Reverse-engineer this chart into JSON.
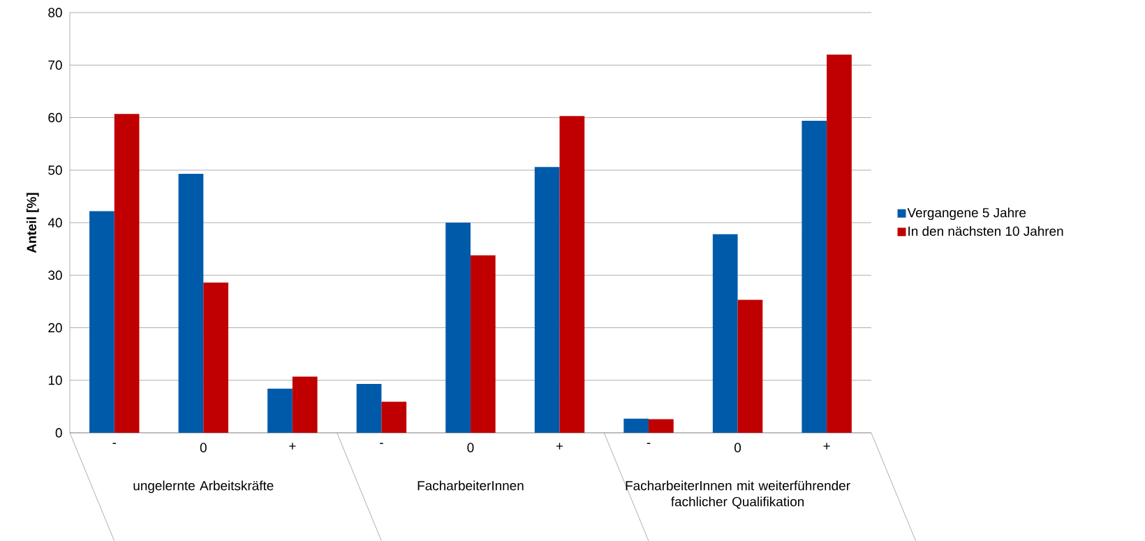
{
  "chart_data": {
    "type": "bar",
    "ylabel": "Anteil [%]",
    "categories": [
      "-",
      "0",
      "+",
      "-",
      "0",
      "+",
      "-",
      "0",
      "+"
    ],
    "series": [
      {
        "name": "Vergangene 5 Jahre",
        "color": "#005aaa",
        "values": [
          42.2,
          49.3,
          8.4,
          9.3,
          40.0,
          50.6,
          2.7,
          37.8,
          59.4
        ]
      },
      {
        "name": "In den nächsten 10 Jahren",
        "color": "#c00000",
        "values": [
          60.7,
          28.6,
          10.7,
          5.9,
          33.8,
          60.3,
          2.6,
          25.3,
          72.0
        ]
      }
    ],
    "annotations": [
      "ungelernte Arbeitskräfte",
      "FacharbeiterInnen",
      "FacharbeiterInnen mit weiterführender fachlicher Qualifikation"
    ],
    "ylim": [
      0,
      80
    ],
    "yticks": [
      0,
      10,
      20,
      30,
      40,
      50,
      60,
      70,
      80
    ],
    "grid": "y",
    "legend": "right"
  }
}
